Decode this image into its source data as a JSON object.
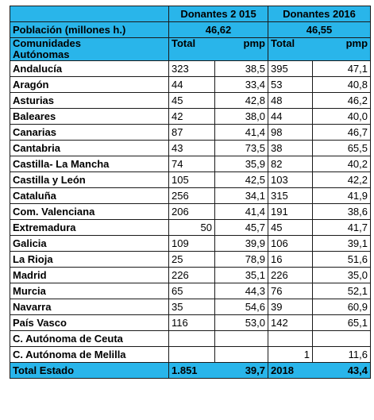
{
  "header": {
    "donantes_2015": "Donantes 2 015",
    "donantes_2016": "Donantes 2016",
    "poblacion_label": "Población (millones h.)",
    "poblacion_2015": "46,62",
    "poblacion_2016": "46,55",
    "comunidades_label_1": "Comunidades",
    "comunidades_label_2": "Autónomas",
    "total_label": "Total",
    "pmp_label": "pmp"
  },
  "rows": [
    {
      "name": "Andalucía",
      "t15": "323",
      "p15": "38,5",
      "t16": "395",
      "p16": "47,1"
    },
    {
      "name": "Aragón",
      "t15": "44",
      "p15": "33,4",
      "t16": "53",
      "p16": "40,8"
    },
    {
      "name": "Asturias",
      "t15": "45",
      "p15": "42,8",
      "t16": "48",
      "p16": "46,2"
    },
    {
      "name": "Baleares",
      "t15": "42",
      "p15": "38,0",
      "t16": "44",
      "p16": "40,0"
    },
    {
      "name": "Canarias",
      "t15": "87",
      "p15": "41,4",
      "t16": "98",
      "p16": "46,7"
    },
    {
      "name": "Cantabria",
      "t15": "43",
      "p15": "73,5",
      "t16": "38",
      "p16": "65,5"
    },
    {
      "name": "Castilla- La Mancha",
      "t15": "74",
      "p15": "35,9",
      "t16": "82",
      "p16": "40,2"
    },
    {
      "name": "Castilla y León",
      "t15": "105",
      "p15": "42,5",
      "t16": "103",
      "p16": "42,2"
    },
    {
      "name": "Cataluña",
      "t15": "256",
      "p15": "34,1",
      "t16": "315",
      "p16": "41,9"
    },
    {
      "name": "Com. Valenciana",
      "t15": "206",
      "p15": "41,4",
      "t16": "191",
      "p16": "38,6"
    },
    {
      "name": "Extremadura",
      "t15": "50",
      "p15": "45,7",
      "t16": "45",
      "p16": "41,7"
    },
    {
      "name": "Galicia",
      "t15": "109",
      "p15": "39,9",
      "t16": "106",
      "p16": "39,1"
    },
    {
      "name": "La Rioja",
      "t15": "25",
      "p15": "78,9",
      "t16": "16",
      "p16": "51,6"
    },
    {
      "name": "Madrid",
      "t15": "226",
      "p15": "35,1",
      "t16": "226",
      "p16": "35,0"
    },
    {
      "name": "Murcia",
      "t15": "65",
      "p15": "44,3",
      "t16": "76",
      "p16": "52,1"
    },
    {
      "name": "Navarra",
      "t15": "35",
      "p15": "54,6",
      "t16": "39",
      "p16": "60,9"
    },
    {
      "name": "País Vasco",
      "t15": "116",
      "p15": "53,0",
      "t16": "142",
      "p16": "65,1"
    },
    {
      "name": "C. Autónoma de Ceuta",
      "t15": "",
      "p15": "",
      "t16": "",
      "p16": ""
    },
    {
      "name": "C. Autónoma de Melilla",
      "t15": "",
      "p15": "",
      "t16": "1",
      "p16": "11,6"
    }
  ],
  "total": {
    "name": "Total Estado",
    "t15": "1.851",
    "p15": "39,7",
    "t16": "2018",
    "p16": "43,4"
  },
  "colors": {
    "header_blue": "#29b5ea",
    "border": "#1a1a1a"
  }
}
